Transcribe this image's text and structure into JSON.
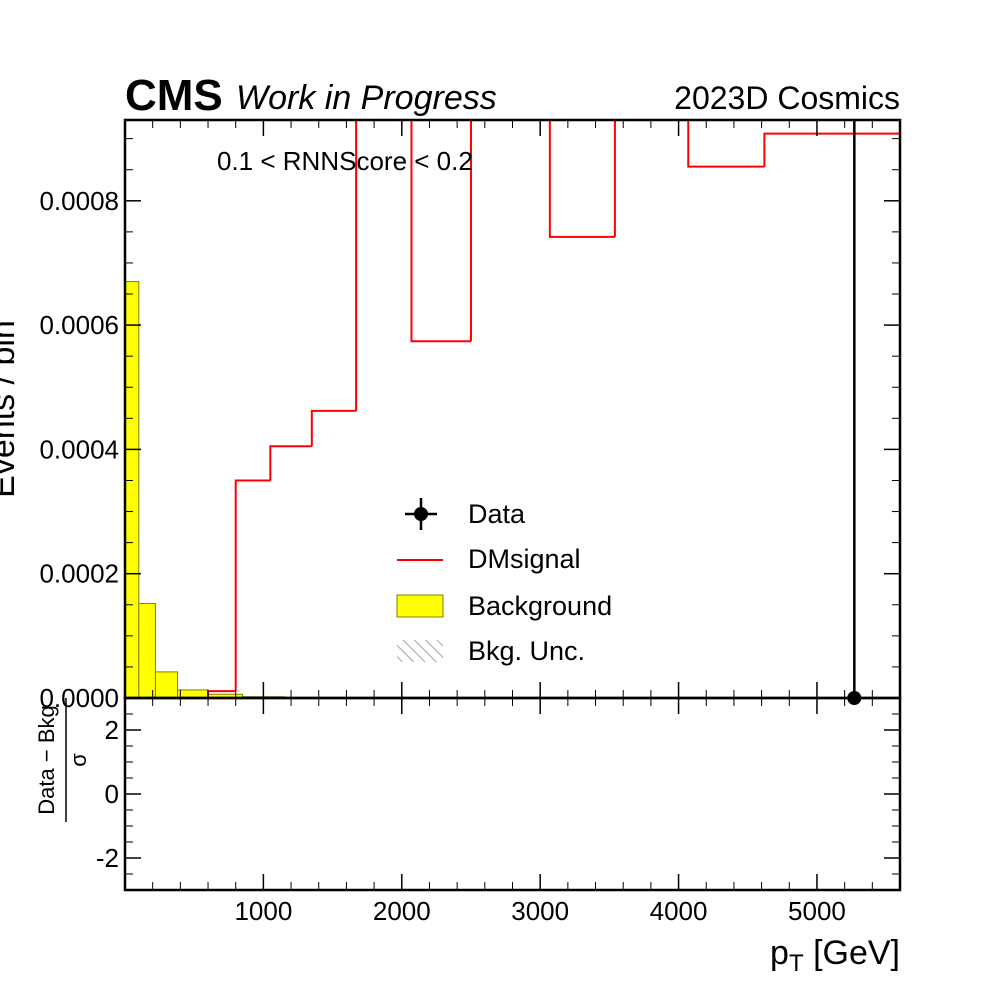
{
  "header": {
    "experiment": "CMS",
    "status": "Work in Progress",
    "right_label": "2023D Cosmics"
  },
  "annotation": "0.1 < RNNScore < 0.2",
  "colors": {
    "signal": "#ff0000",
    "background_fill": "#ffff00",
    "background_edge": "#808000",
    "data": "#000000",
    "unc_hatch": "#888888"
  },
  "legend": {
    "placement": "center",
    "entries": [
      {
        "label": "Data",
        "style": "marker-errorbar"
      },
      {
        "label": "DMsignal",
        "style": "line"
      },
      {
        "label": "Background",
        "style": "fill"
      },
      {
        "label": "Bkg. Unc.",
        "style": "hatch"
      }
    ]
  },
  "chart_data": [
    {
      "type": "histogram",
      "panel": "main",
      "ylabel": "Events / bin",
      "xlim": [
        0,
        5600
      ],
      "ylim": [
        0,
        0.00093
      ],
      "yticks": [
        0.0,
        0.0002,
        0.0004,
        0.0006,
        0.0008
      ],
      "ytick_labels": [
        "0.0000",
        "0.0002",
        "0.0004",
        "0.0006",
        "0.0008"
      ],
      "series": [
        {
          "name": "Background",
          "kind": "stepfilled",
          "edges": [
            0,
            100,
            220,
            380,
            600,
            850,
            1150,
            1600
          ],
          "values": [
            0.00067,
            0.000152,
            4.2e-05,
            1.3e-05,
            6e-06,
            2e-06,
            5e-07
          ]
        },
        {
          "name": "DMsignal",
          "kind": "step",
          "edges": [
            600,
            800,
            1050,
            1350,
            1670,
            2070,
            2500,
            3070,
            3540,
            4070,
            4620,
            5600
          ],
          "values": [
            1.1e-05,
            0.00035,
            0.000405,
            0.000462,
            0.00098,
            0.000574,
            0.00098,
            0.000742,
            0.00098,
            0.000855,
            0.000908
          ]
        },
        {
          "name": "Data",
          "kind": "errorbar",
          "points": [
            {
              "x": 5270,
              "y": 0.0,
              "yerr_high": 0.00093
            }
          ]
        }
      ]
    },
    {
      "type": "scatter",
      "panel": "ratio",
      "ylabel_numerator": "Data − Bkg",
      "ylabel_denominator": "σ",
      "xlabel": "p",
      "xlabel_sub": "T",
      "xlabel_unit": " [GeV]",
      "xlim": [
        0,
        5600
      ],
      "ylim": [
        -3,
        3
      ],
      "xticks": [
        1000,
        2000,
        3000,
        4000,
        5000
      ],
      "xtick_labels": [
        "1000",
        "2000",
        "3000",
        "4000",
        "5000"
      ],
      "yticks": [
        -2,
        0,
        2
      ],
      "ytick_labels": [
        "-2",
        "0",
        "2"
      ],
      "points": []
    }
  ]
}
